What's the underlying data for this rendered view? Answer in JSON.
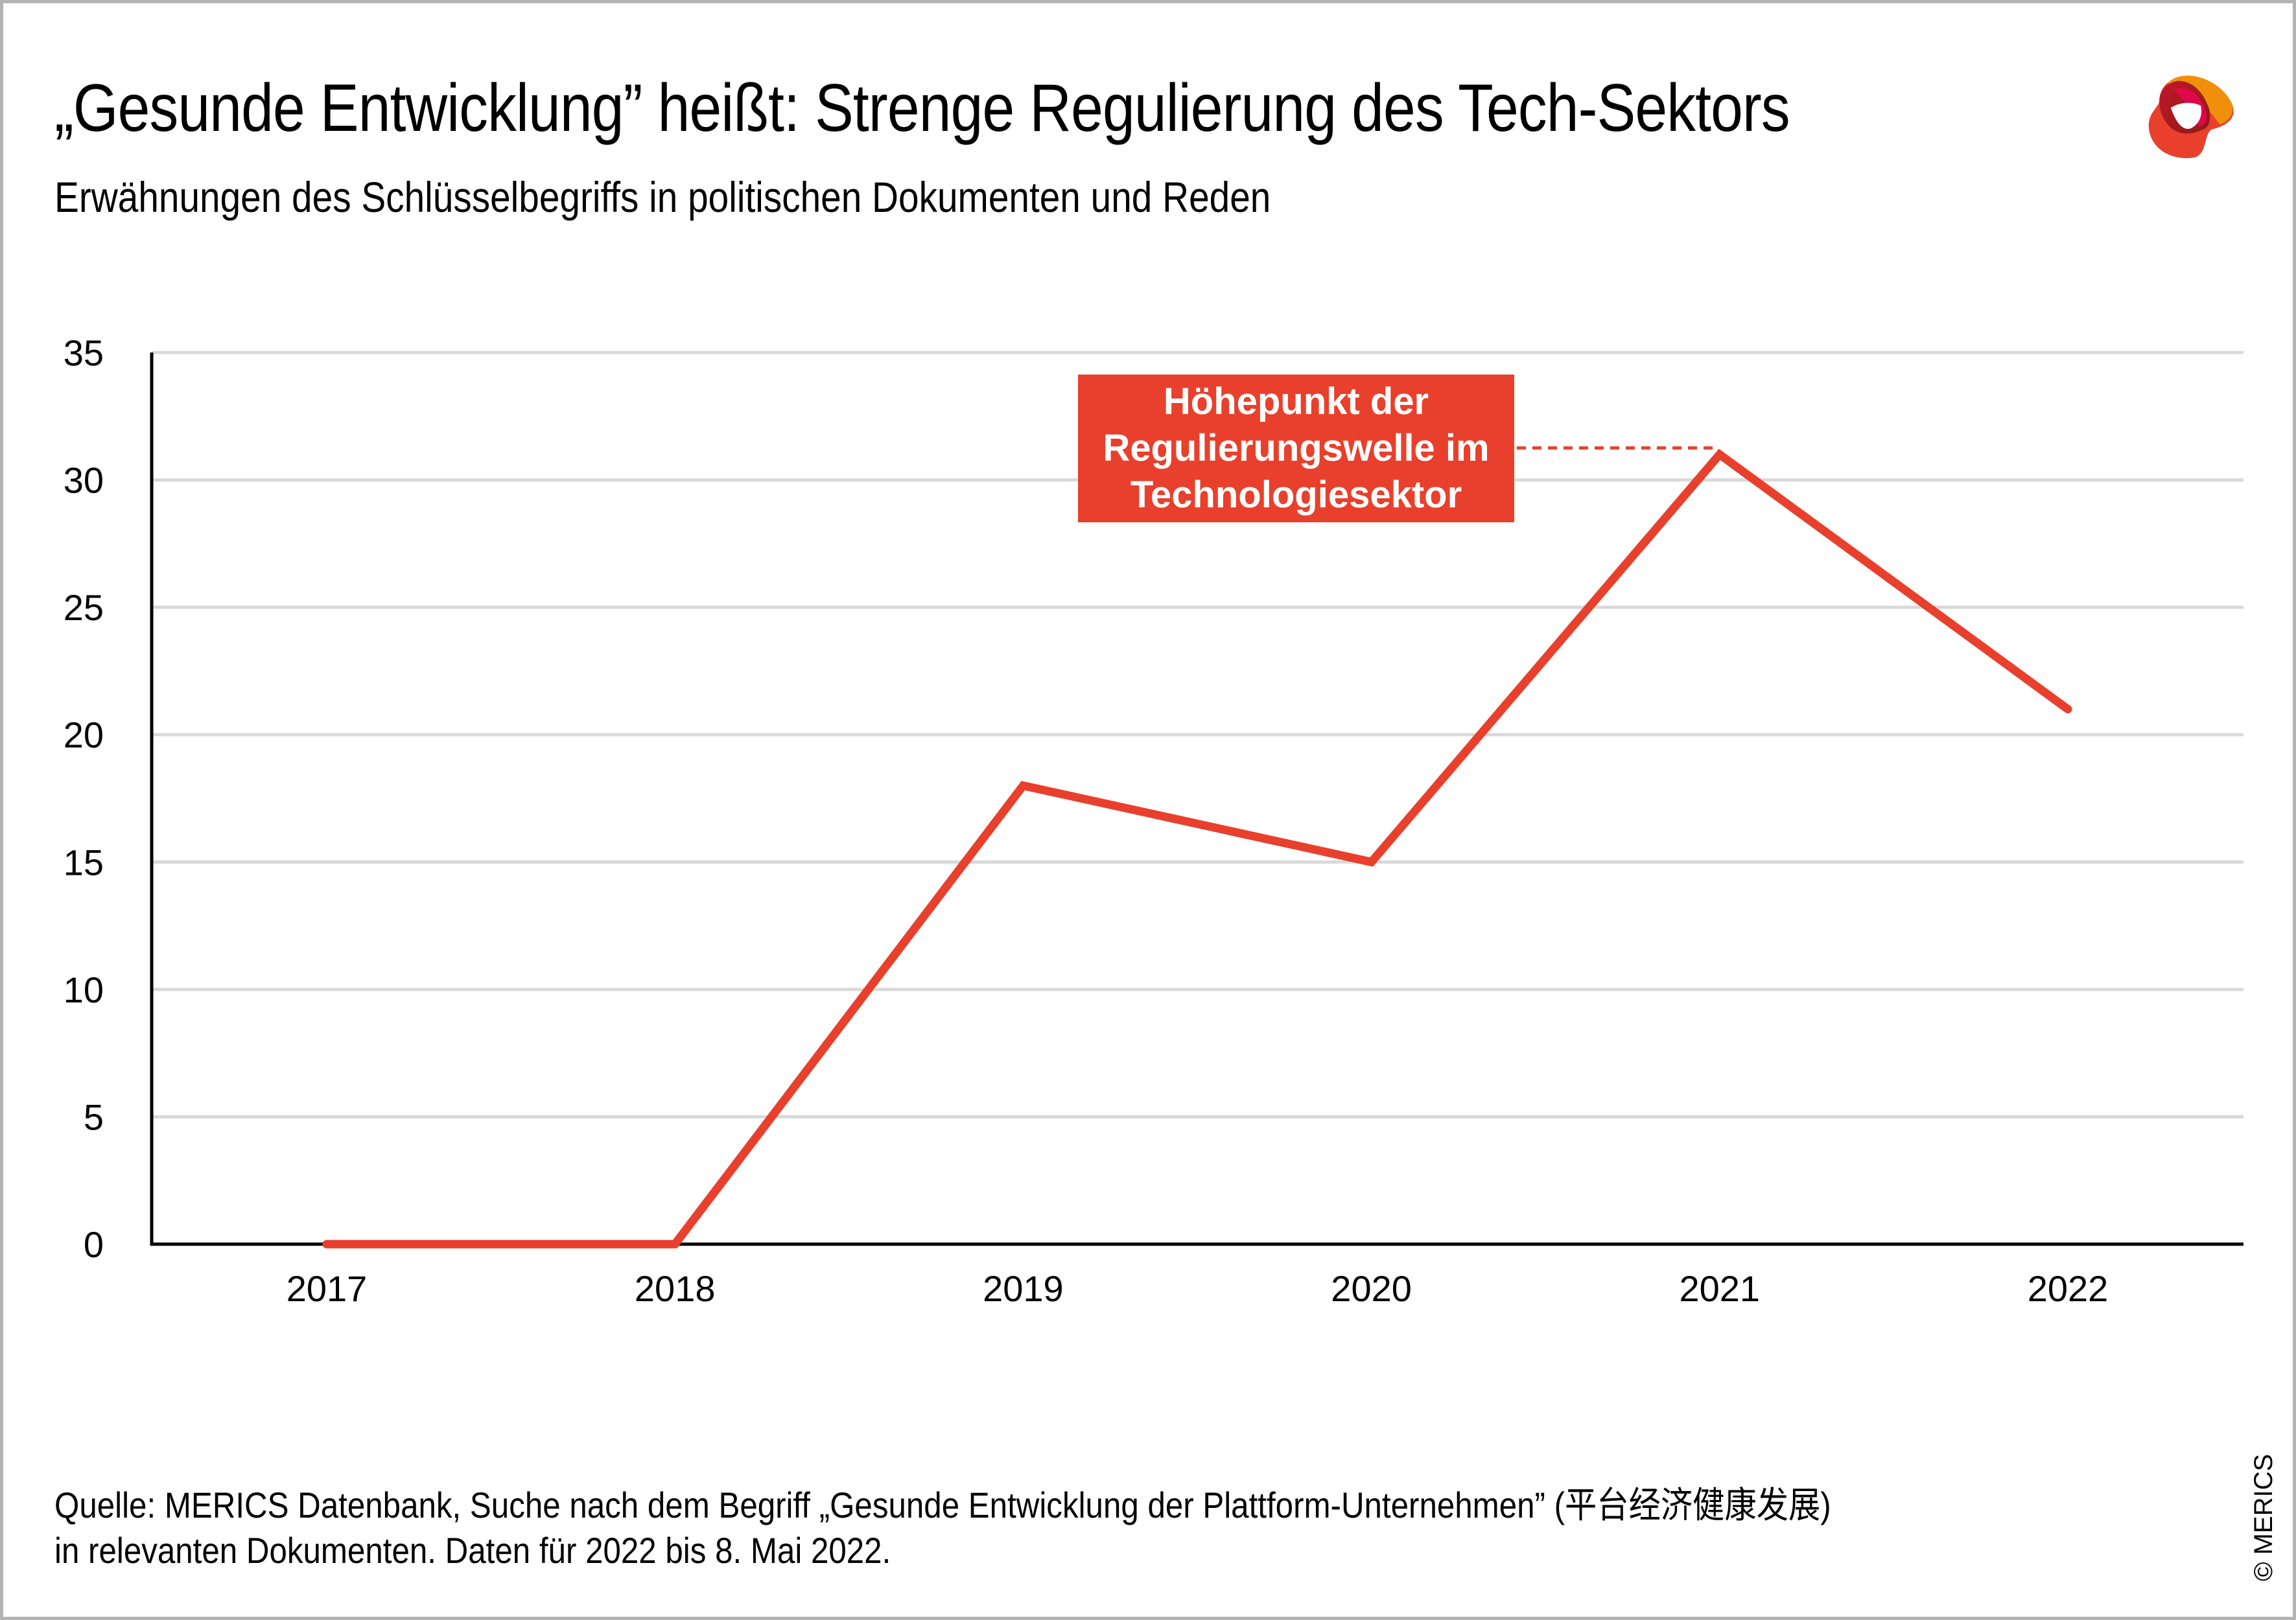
{
  "header": {
    "title": "„Gesunde Entwicklung” heißt: Strenge Regulierung des Tech-Sektors",
    "subtitle": "Erwähnungen des Schlüsselbegriffs in politischen Dokumenten und Reden",
    "logo_icon": "merics-logo-icon"
  },
  "colors": {
    "line": "#e8402c",
    "grid": "#d9d9d9",
    "axis": "#000000",
    "annotation_bg": "#e8402c",
    "frame": "#b3b3b3"
  },
  "chart_data": {
    "type": "line",
    "title": "„Gesunde Entwicklung” heißt: Strenge Regulierung des Tech-Sektors",
    "subtitle": "Erwähnungen des Schlüsselbegriffs in politischen Dokumenten und Reden",
    "xlabel": "",
    "ylabel": "",
    "categories": [
      "2017",
      "2018",
      "2019",
      "2020",
      "2021",
      "2022"
    ],
    "series": [
      {
        "name": "Erwähnungen",
        "values": [
          0,
          0,
          18,
          15,
          31,
          21
        ]
      }
    ],
    "ylim": [
      0,
      35
    ],
    "yticks": [
      0,
      5,
      10,
      15,
      20,
      25,
      30,
      35
    ],
    "ytick_labels": [
      "0",
      "5",
      "10",
      "15",
      "20",
      "25",
      "30",
      "35"
    ],
    "grid": true,
    "legend": "none",
    "annotations": [
      {
        "text_lines": [
          "Höhepunkt der",
          "Regulierungswelle im",
          "Technologiesektor"
        ],
        "target_category": "2021",
        "target_value": 31,
        "connector": "dashed"
      }
    ]
  },
  "footer": {
    "source_line1": "Quelle: MERICS Datenbank, Suche nach dem Begriff „Gesunde Entwicklung der Plattform-Unternehmen” (平台经济健康发展)",
    "source_line2": "in relevanten Dokumenten. Daten für 2022 bis 8. Mai 2022.",
    "copyright": "© MERICS"
  }
}
